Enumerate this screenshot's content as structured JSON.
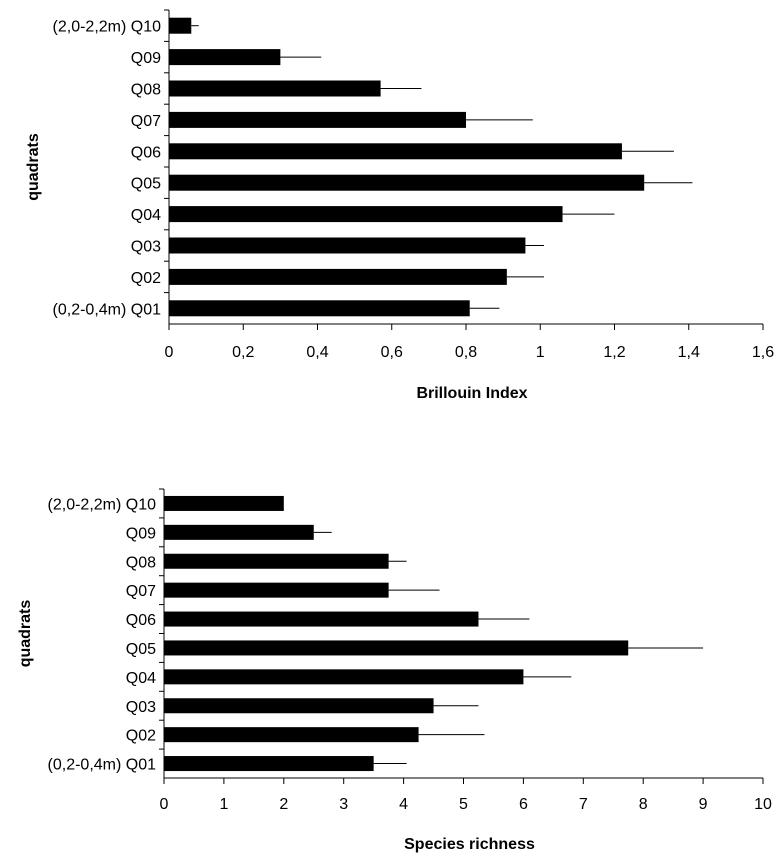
{
  "chart_data": [
    {
      "type": "bar",
      "orientation": "horizontal",
      "title": "",
      "xlabel": "Brillouin Index",
      "ylabel": "quadrats",
      "xlim": [
        0,
        1.6
      ],
      "x_ticks": [
        "0",
        "0,2",
        "0,4",
        "0,6",
        "0,8",
        "1",
        "1,2",
        "1,4",
        "1,6"
      ],
      "categories": [
        "(0,2-0,4m) Q01",
        "Q02",
        "Q03",
        "Q04",
        "Q05",
        "Q06",
        "Q07",
        "Q08",
        "Q09",
        "(2,0-2,2m) Q10"
      ],
      "values": [
        0.81,
        0.91,
        0.96,
        1.06,
        1.28,
        1.22,
        0.8,
        0.57,
        0.3,
        0.06
      ],
      "errors": [
        0.08,
        0.1,
        0.05,
        0.14,
        0.13,
        0.14,
        0.18,
        0.11,
        0.11,
        0.02
      ],
      "bar_color": "#000000",
      "grid": false,
      "legend": "none"
    },
    {
      "type": "bar",
      "orientation": "horizontal",
      "title": "",
      "xlabel": "Species richness",
      "ylabel": "quadrats",
      "xlim": [
        0,
        10
      ],
      "x_ticks": [
        "0",
        "1",
        "2",
        "3",
        "4",
        "5",
        "6",
        "7",
        "8",
        "9",
        "10"
      ],
      "categories": [
        "(0,2-0,4m) Q01",
        "Q02",
        "Q03",
        "Q04",
        "Q05",
        "Q06",
        "Q07",
        "Q08",
        "Q09",
        "(2,0-2,2m) Q10"
      ],
      "values": [
        3.5,
        4.25,
        4.5,
        6.0,
        7.75,
        5.25,
        3.75,
        3.75,
        2.5,
        2.0
      ],
      "errors": [
        0.55,
        1.1,
        0.75,
        0.8,
        1.25,
        0.85,
        0.85,
        0.3,
        0.3,
        0.0
      ],
      "bar_color": "#000000",
      "grid": false,
      "legend": "none"
    }
  ]
}
